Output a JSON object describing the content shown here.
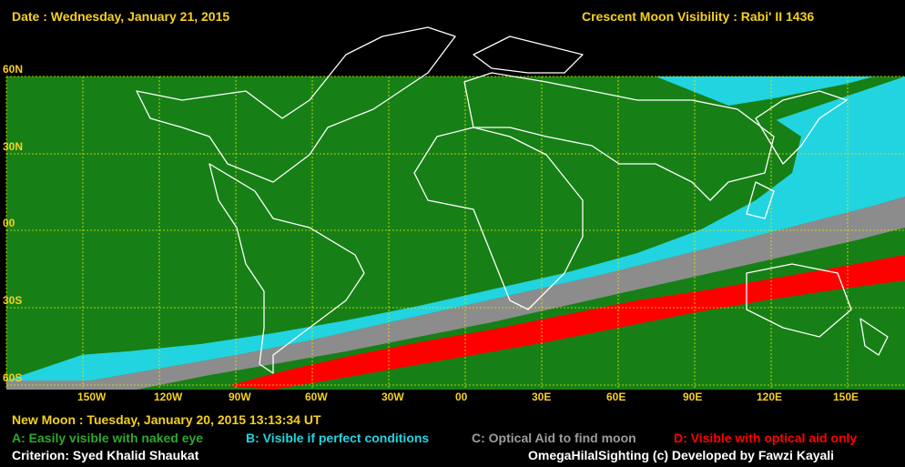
{
  "header": {
    "date": "Date : Wednesday, January 21, 2015",
    "title": "Crescent Moon Visibility : Rabi' II  1436"
  },
  "map": {
    "colors": {
      "A": "#168016",
      "B": "#22d4e0",
      "C": "#8c8c8c",
      "D": "#ff0000",
      "grid": "#e8e800",
      "coast": "#ffffff",
      "border": "#9a9a9a"
    },
    "lat_labels": [
      "60N",
      "30N",
      "00",
      "30S",
      "60S"
    ],
    "lon_labels": [
      "150W",
      "120W",
      "90W",
      "60W",
      "30W",
      "00",
      "30E",
      "60E",
      "90E",
      "120E",
      "150E"
    ]
  },
  "footer": {
    "new_moon": "New Moon : Tuesday, January 20, 2015  13:13:34  UT",
    "legend": {
      "a": "A: Easily visible with naked eye",
      "b": "B: Visible if perfect conditions",
      "c": "C: Optical Aid to find moon",
      "d": "D: Visible with optical aid only"
    },
    "criterion": "Criterion: Syed Khalid Shaukat",
    "credit": "OmegaHilalSighting  (c)  Developed by Fawzi Kayali"
  }
}
